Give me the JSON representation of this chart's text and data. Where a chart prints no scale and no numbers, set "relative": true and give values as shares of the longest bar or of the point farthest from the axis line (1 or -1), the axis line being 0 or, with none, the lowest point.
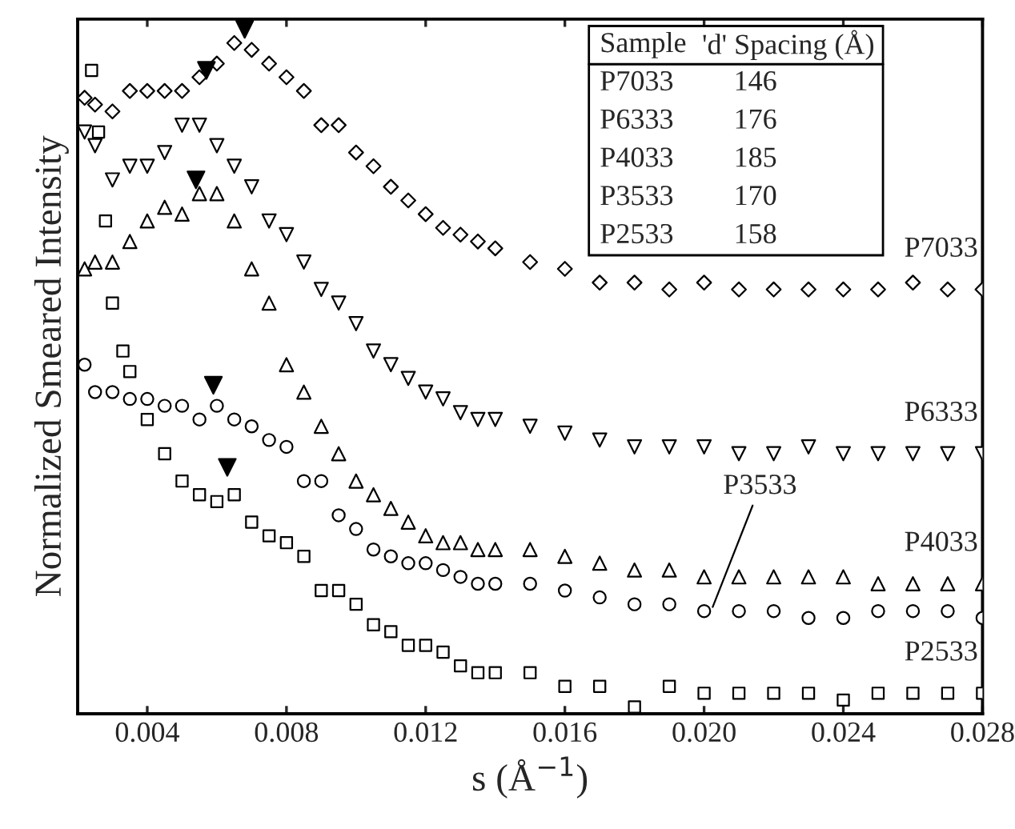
{
  "chart_data": {
    "type": "scatter",
    "relative": true,
    "xlabel": "s (Å$^{−1}$)",
    "ylabel": "Normalized Smeared Intensity",
    "xlim": [
      0.002,
      0.028
    ],
    "xticks": [
      0.004,
      0.008,
      0.012,
      0.016,
      {
        "value": 0.02,
        "label": "0.020"
      },
      0.024,
      0.028
    ],
    "x": [
      0.0022,
      0.0025,
      0.003,
      0.0035,
      0.004,
      0.0045,
      0.005,
      0.0055,
      0.006,
      0.0065,
      0.007,
      0.0075,
      0.008,
      0.0085,
      0.009,
      0.0095,
      0.01,
      0.0105,
      0.011,
      0.0115,
      0.012,
      0.0125,
      0.013,
      0.0135,
      0.014,
      0.015,
      0.016,
      0.017,
      0.018,
      0.019,
      0.02,
      0.021,
      0.022,
      0.023,
      0.024,
      0.025,
      0.026,
      0.027,
      0.028
    ],
    "series": [
      {
        "name": "P7033",
        "color": "#000000",
        "marker": "diamond",
        "values": [
          0.9,
          0.89,
          0.88,
          0.91,
          0.91,
          0.91,
          0.91,
          0.93,
          0.95,
          0.98,
          0.97,
          0.95,
          0.93,
          0.91,
          0.86,
          0.86,
          0.82,
          0.8,
          0.77,
          0.75,
          0.73,
          0.71,
          0.7,
          0.69,
          0.68,
          0.66,
          0.65,
          0.63,
          0.63,
          0.62,
          0.63,
          0.62,
          0.62,
          0.62,
          0.62,
          0.62,
          0.63,
          0.62,
          0.62
        ]
      },
      {
        "name": "P6333",
        "color": "#000000",
        "marker": "triangle_down",
        "values": [
          0.85,
          0.83,
          0.78,
          0.8,
          0.8,
          0.82,
          0.86,
          0.86,
          0.83,
          0.8,
          0.77,
          0.72,
          0.7,
          0.66,
          0.62,
          0.6,
          0.57,
          0.53,
          0.51,
          0.49,
          0.47,
          0.46,
          0.44,
          0.43,
          0.43,
          0.42,
          0.41,
          0.4,
          0.39,
          0.39,
          0.39,
          0.38,
          0.38,
          0.39,
          0.38,
          0.38,
          0.38,
          0.38,
          0.38
        ]
      },
      {
        "name": "P4033",
        "color": "#000000",
        "marker": "triangle",
        "values": [
          0.65,
          0.66,
          0.66,
          0.69,
          0.72,
          0.74,
          0.73,
          0.76,
          0.76,
          0.72,
          0.65,
          0.6,
          0.51,
          0.47,
          0.42,
          0.38,
          0.34,
          0.32,
          0.3,
          0.28,
          0.26,
          0.25,
          0.25,
          0.24,
          0.24,
          0.24,
          0.23,
          0.22,
          0.21,
          0.21,
          0.2,
          0.2,
          0.2,
          0.2,
          0.2,
          0.19,
          0.19,
          0.19,
          0.19
        ]
      },
      {
        "color": "#000000",
        "marker": "circle",
        "values": [
          0.51,
          0.47,
          0.47,
          0.46,
          0.46,
          0.45,
          0.45,
          0.43,
          0.45,
          0.43,
          0.42,
          0.4,
          0.39,
          0.34,
          0.34,
          0.29,
          0.27,
          0.24,
          0.23,
          0.22,
          0.22,
          0.21,
          0.2,
          0.19,
          0.19,
          0.19,
          0.18,
          0.17,
          0.16,
          0.16,
          0.15,
          0.15,
          0.15,
          0.14,
          0.14,
          0.15,
          0.15,
          0.15,
          0.14
        ]
      },
      {
        "name": "P2533",
        "color": "#000000",
        "marker": "square",
        "x": [
          0.0024,
          0.0026,
          0.0028,
          0.003,
          0.0033,
          0.0035,
          0.004,
          0.0045,
          0.005,
          0.0055,
          0.006,
          0.0065,
          0.007,
          0.0075,
          0.008,
          0.0085,
          0.009,
          0.0095,
          0.01,
          0.0105,
          0.011,
          0.0115,
          0.012,
          0.0125,
          0.013,
          0.0135,
          0.014,
          0.015,
          0.016,
          0.017,
          0.018,
          0.019,
          0.02,
          0.021,
          0.022,
          0.023,
          0.024,
          0.025,
          0.026,
          0.027,
          0.028
        ],
        "values": [
          0.94,
          0.85,
          0.72,
          0.6,
          0.53,
          0.5,
          0.43,
          0.38,
          0.34,
          0.32,
          0.31,
          0.32,
          0.28,
          0.26,
          0.25,
          0.23,
          0.18,
          0.18,
          0.16,
          0.13,
          0.12,
          0.1,
          0.1,
          0.09,
          0.07,
          0.06,
          0.06,
          0.06,
          0.04,
          0.04,
          0.01,
          0.04,
          0.03,
          0.03,
          0.03,
          0.03,
          0.02,
          0.03,
          0.03,
          0.03,
          0.03
        ]
      },
      {
        "color": "#000000",
        "marker": "triangle_down",
        "x": [
          0.0068,
          0.0057,
          0.0054,
          0.0059,
          0.0063
        ],
        "values": [
          1.0,
          0.94,
          0.78,
          0.48,
          0.36
        ]
      }
    ],
    "annotations": [
      "Sample",
      "'d' Spacing (Å)",
      "P7033",
      "146",
      "P6333",
      "176",
      "P4033",
      "185",
      "P3533",
      "170",
      "P2533",
      "158",
      {
        "text": "P3533",
        "x": 0.0202,
        "y": 0.15
      }
    ],
    "grid": false,
    "legend": false
  }
}
